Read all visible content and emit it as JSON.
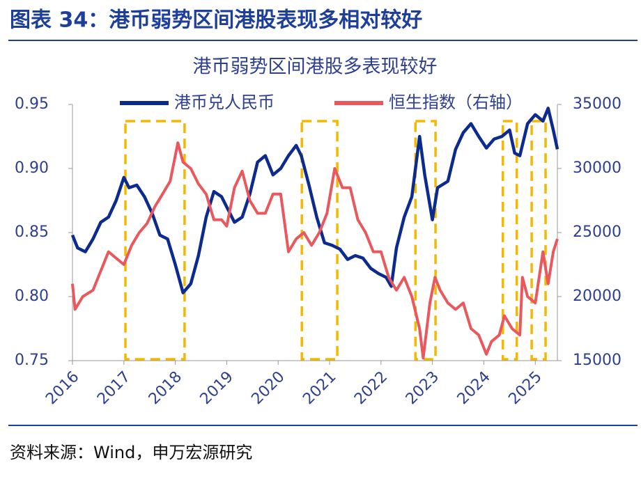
{
  "header": {
    "title": "图表 34：港币弱势区间港股表现多相对较好"
  },
  "chart_data": {
    "type": "line",
    "title": "港币弱势区间港股多表现较好",
    "xlim": [
      2016,
      2025.43
    ],
    "xticks": [
      2016,
      2017,
      2018,
      2019,
      2020,
      2021,
      2022,
      2023,
      2024,
      2025
    ],
    "ylim": [
      0.75,
      0.95
    ],
    "yticks": [
      0.75,
      {
        "value": 0.8,
        "label": "0.80"
      },
      0.85,
      {
        "value": 0.9,
        "label": "0.90"
      },
      0.95
    ],
    "y2lim": [
      15000,
      35000
    ],
    "y2ticks": [
      15000,
      20000,
      25000,
      30000,
      35000
    ],
    "grid": false,
    "legend": "top",
    "highlights": [
      [
        2017.03,
        2018.18
      ],
      [
        2020.46,
        2021.15
      ],
      [
        2022.67,
        2023.06
      ],
      [
        2024.37,
        2024.64
      ],
      [
        2024.93,
        2025.2
      ]
    ],
    "highlight_color": "#f5b800",
    "series": [
      {
        "name": "港币兑人民币",
        "color": "#0d2a8f",
        "x": [
          2016.0,
          2016.1,
          2016.25,
          2016.4,
          2016.55,
          2016.7,
          2016.85,
          2017.0,
          2017.1,
          2017.25,
          2017.4,
          2017.55,
          2017.7,
          2017.85,
          2018.0,
          2018.15,
          2018.3,
          2018.45,
          2018.6,
          2018.75,
          2018.9,
          2019.0,
          2019.15,
          2019.3,
          2019.45,
          2019.6,
          2019.75,
          2019.9,
          2020.05,
          2020.2,
          2020.35,
          2020.45,
          2020.6,
          2020.75,
          2020.9,
          2021.05,
          2021.2,
          2021.35,
          2021.5,
          2021.65,
          2021.8,
          2021.95,
          2022.1,
          2022.2,
          2022.3,
          2022.45,
          2022.6,
          2022.75,
          2022.85,
          2023.0,
          2023.1,
          2023.3,
          2023.45,
          2023.6,
          2023.75,
          2023.9,
          2024.05,
          2024.2,
          2024.35,
          2024.5,
          2024.6,
          2024.7,
          2024.85,
          2025.0,
          2025.15,
          2025.25,
          2025.35,
          2025.43
        ],
        "values": [
          0.848,
          0.838,
          0.835,
          0.845,
          0.858,
          0.862,
          0.875,
          0.893,
          0.885,
          0.887,
          0.878,
          0.865,
          0.848,
          0.845,
          0.825,
          0.803,
          0.81,
          0.832,
          0.862,
          0.882,
          0.878,
          0.87,
          0.858,
          0.862,
          0.88,
          0.905,
          0.91,
          0.895,
          0.9,
          0.91,
          0.918,
          0.91,
          0.887,
          0.862,
          0.842,
          0.84,
          0.837,
          0.829,
          0.832,
          0.83,
          0.822,
          0.818,
          0.815,
          0.808,
          0.838,
          0.862,
          0.878,
          0.925,
          0.895,
          0.86,
          0.885,
          0.89,
          0.915,
          0.928,
          0.935,
          0.925,
          0.916,
          0.923,
          0.925,
          0.93,
          0.912,
          0.91,
          0.935,
          0.942,
          0.937,
          0.947,
          0.93,
          0.915
        ]
      },
      {
        "name": "恒生指数（右轴）",
        "color": "#e8585d",
        "axis": "y2",
        "x": [
          2016.0,
          2016.05,
          2016.2,
          2016.4,
          2016.55,
          2016.7,
          2016.85,
          2017.0,
          2017.15,
          2017.3,
          2017.45,
          2017.6,
          2017.75,
          2017.9,
          2018.05,
          2018.15,
          2018.3,
          2018.45,
          2018.6,
          2018.75,
          2018.9,
          2019.0,
          2019.15,
          2019.3,
          2019.45,
          2019.6,
          2019.75,
          2019.9,
          2020.05,
          2020.2,
          2020.35,
          2020.5,
          2020.65,
          2020.8,
          2020.95,
          2021.1,
          2021.25,
          2021.4,
          2021.55,
          2021.7,
          2021.85,
          2022.0,
          2022.15,
          2022.3,
          2022.45,
          2022.6,
          2022.75,
          2022.82,
          2022.95,
          2023.05,
          2023.15,
          2023.3,
          2023.45,
          2023.6,
          2023.75,
          2023.9,
          2024.05,
          2024.15,
          2024.3,
          2024.4,
          2024.55,
          2024.7,
          2024.75,
          2024.85,
          2025.0,
          2025.15,
          2025.25,
          2025.35,
          2025.43
        ],
        "values": [
          21000,
          19000,
          20000,
          20500,
          22000,
          23500,
          23000,
          22500,
          24000,
          25000,
          25700,
          27000,
          28000,
          29000,
          32000,
          30500,
          30000,
          28800,
          28000,
          26000,
          26000,
          25500,
          28500,
          29800,
          27500,
          26500,
          26500,
          28000,
          28000,
          23500,
          24500,
          25000,
          24000,
          25000,
          26500,
          30000,
          28500,
          28500,
          26000,
          25000,
          23500,
          23500,
          21500,
          20500,
          21500,
          20000,
          17500,
          15200,
          19500,
          21500,
          20500,
          19500,
          19000,
          19500,
          17500,
          17000,
          15500,
          16500,
          17000,
          18500,
          17500,
          17000,
          21500,
          20000,
          19500,
          23500,
          21000,
          23500,
          24500
        ]
      }
    ]
  },
  "footer": {
    "source": "资料来源：Wind，申万宏源研究"
  }
}
